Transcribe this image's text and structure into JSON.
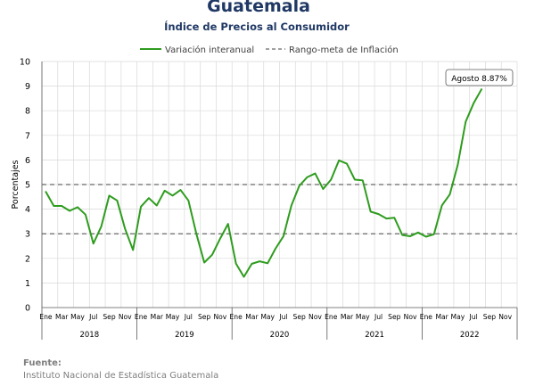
{
  "header": {
    "title": "Guatemala",
    "subtitle": "Índice de Precios al Consumidor"
  },
  "legend": {
    "series_label": "Variación interanual",
    "band_label": "Rango-meta de Inflación"
  },
  "annotation": {
    "text": "Agosto 8.87%"
  },
  "source": {
    "heading": "Fuente:",
    "text": "Instituto Nacional de Estadística Guatemala"
  },
  "colors": {
    "series": "#2e9c1e",
    "band": "#808080",
    "title": "#1f3864",
    "grid": "#d9d9d9"
  },
  "chart_data": {
    "type": "line",
    "title": "Guatemala",
    "subtitle": "Índice de Precios al Consumidor",
    "ylabel": "Porcentajes",
    "xlabel": "",
    "ylim": [
      0,
      10
    ],
    "yticks": [
      0,
      1,
      2,
      3,
      4,
      5,
      6,
      7,
      8,
      9,
      10
    ],
    "grid": "vertical",
    "legend_position": "top",
    "month_labels": [
      "Ene",
      "Mar",
      "May",
      "Jul",
      "Sep",
      "Nov"
    ],
    "years": [
      "2018",
      "2019",
      "2020",
      "2021",
      "2022"
    ],
    "reference_lines": [
      {
        "name": "Rango-meta de Inflación",
        "value": 3
      },
      {
        "name": "Rango-meta de Inflación",
        "value": 5
      }
    ],
    "series": [
      {
        "name": "Variación interanual",
        "x": [
          "2018-01",
          "2018-02",
          "2018-03",
          "2018-04",
          "2018-05",
          "2018-06",
          "2018-07",
          "2018-08",
          "2018-09",
          "2018-10",
          "2018-11",
          "2018-12",
          "2019-01",
          "2019-02",
          "2019-03",
          "2019-04",
          "2019-05",
          "2019-06",
          "2019-07",
          "2019-08",
          "2019-09",
          "2019-10",
          "2019-11",
          "2019-12",
          "2020-01",
          "2020-02",
          "2020-03",
          "2020-04",
          "2020-05",
          "2020-06",
          "2020-07",
          "2020-08",
          "2020-09",
          "2020-10",
          "2020-11",
          "2020-12",
          "2021-01",
          "2021-02",
          "2021-03",
          "2021-04",
          "2021-05",
          "2021-06",
          "2021-07",
          "2021-08",
          "2021-09",
          "2021-10",
          "2021-11",
          "2021-12",
          "2022-01",
          "2022-02",
          "2022-03",
          "2022-04",
          "2022-05",
          "2022-06",
          "2022-07",
          "2022-08"
        ],
        "values": [
          4.7,
          4.13,
          4.13,
          3.93,
          4.08,
          3.78,
          2.6,
          3.3,
          4.55,
          4.35,
          3.2,
          2.34,
          4.1,
          4.45,
          4.15,
          4.75,
          4.55,
          4.78,
          4.35,
          3.0,
          1.83,
          2.15,
          2.8,
          3.4,
          1.79,
          1.25,
          1.78,
          1.88,
          1.8,
          2.4,
          2.9,
          4.15,
          4.95,
          5.3,
          5.45,
          4.82,
          5.2,
          5.98,
          5.85,
          5.2,
          5.17,
          3.9,
          3.8,
          3.62,
          3.65,
          2.95,
          2.9,
          3.05,
          2.88,
          2.98,
          4.15,
          4.6,
          5.8,
          7.55,
          8.3,
          8.87
        ]
      }
    ],
    "annotations": [
      {
        "text": "Agosto 8.87%",
        "x": "2022-08",
        "y": 8.87
      }
    ]
  }
}
